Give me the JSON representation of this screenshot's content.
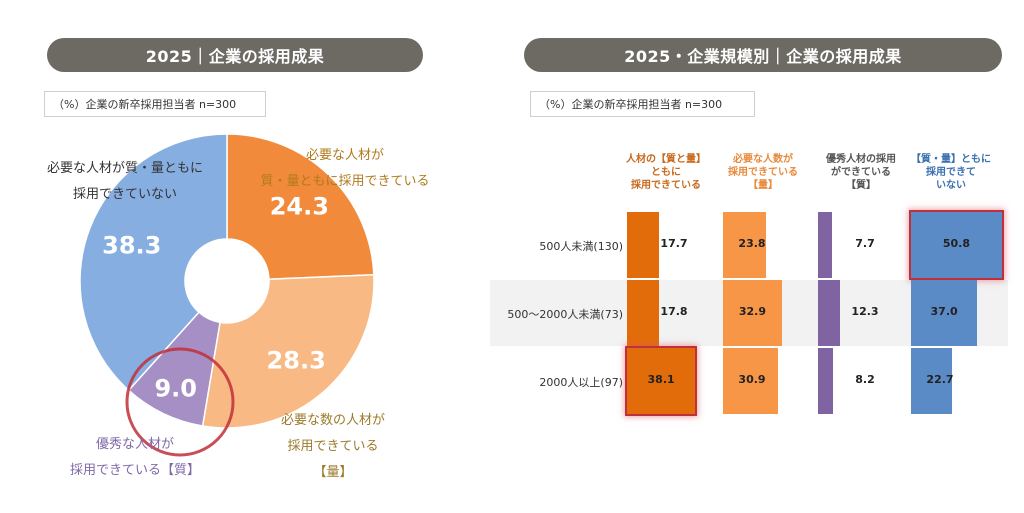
{
  "left": {
    "title": "2025｜企業の採用成果",
    "note": "（%）企業の新卒採用担当者 n=300"
  },
  "right": {
    "title": "2025・企業規模別｜企業の採用成果",
    "note": "（%）企業の新卒採用担当者 n=300"
  },
  "colors": {
    "both": "#f28a3c",
    "quantity": "#f8b985",
    "quality": "#a58fc4",
    "neither": "#86aee0",
    "bar_both": "#e36c0a",
    "bar_quantity": "#f79646",
    "bar_quality": "#8064a2",
    "bar_neither": "#5b8bc7",
    "highlight": "#c0303a"
  },
  "chart_data": [
    {
      "type": "pie",
      "title": "2025｜企業の採用成果",
      "unit": "%",
      "slices": [
        {
          "key": "both",
          "label": "必要な人材が\n質・量ともに採用できている",
          "value": 24.3
        },
        {
          "key": "quantity",
          "label": "必要な数の人材が\n採用できている\n【量】",
          "value": 28.3
        },
        {
          "key": "quality",
          "label": "優秀な人材が\n採用できている【質】",
          "value": 9.0,
          "highlighted": true
        },
        {
          "key": "neither",
          "label": "必要な人材が質・量ともに\n採用できていない",
          "value": 38.3
        }
      ]
    },
    {
      "type": "bar",
      "title": "2025・企業規模別｜企業の採用成果",
      "unit": "%",
      "categories": [
        "500人未満(130)",
        "500～2000人未満(73)",
        "2000人以上(97)"
      ],
      "series": [
        {
          "key": "both",
          "name": "人材の【質と量】\nともに\n採用できている",
          "values": [
            17.7,
            17.8,
            38.1
          ],
          "highlight_index": 2
        },
        {
          "key": "quantity",
          "name": "必要な人数が\n採用できている\n【量】",
          "values": [
            23.8,
            32.9,
            30.9
          ]
        },
        {
          "key": "quality",
          "name": "優秀人材の採用\nができている\n【質】",
          "values": [
            7.7,
            12.3,
            8.2
          ]
        },
        {
          "key": "neither",
          "name": "【質・量】ともに\n採用できて\nいない",
          "values": [
            50.8,
            37.0,
            22.7
          ],
          "highlight_index": 0
        }
      ]
    }
  ]
}
